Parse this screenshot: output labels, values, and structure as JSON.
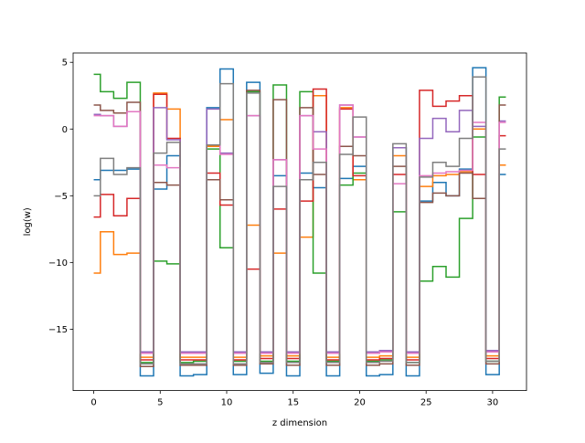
{
  "chart_data": {
    "type": "line",
    "drawstyle": "steps-mid",
    "title": "",
    "xlabel": "z dimension",
    "ylabel": "log(w)",
    "xlim": [
      -1.55,
      32.55
    ],
    "ylim": [
      -19.6,
      5.7
    ],
    "xticks": [
      0,
      5,
      10,
      15,
      20,
      25,
      30
    ],
    "yticks": [
      5,
      0,
      -5,
      -10,
      -15
    ],
    "legend": "none",
    "grid": false,
    "x": [
      0,
      1,
      2,
      3,
      4,
      5,
      6,
      7,
      8,
      9,
      10,
      11,
      12,
      13,
      14,
      15,
      16,
      17,
      18,
      19,
      20,
      21,
      22,
      23,
      24,
      25,
      26,
      27,
      28,
      29,
      30,
      31
    ],
    "series": [
      {
        "color": "#1f77b4",
        "values": [
          -3.8,
          -3.1,
          -3.1,
          -3.0,
          -18.5,
          -4.5,
          -2.0,
          -18.5,
          -18.4,
          1.6,
          4.5,
          -18.4,
          3.5,
          -18.3,
          -3.5,
          -18.5,
          -3.3,
          -4.4,
          -18.5,
          -3.7,
          -2.8,
          -18.5,
          -18.4,
          -1.4,
          -18.5,
          -5.4,
          -4.0,
          -5.0,
          -3.0,
          4.6,
          -18.4,
          -3.4
        ]
      },
      {
        "color": "#ff7f0e",
        "values": [
          -10.8,
          -7.7,
          -9.4,
          -9.3,
          -17.1,
          2.7,
          1.5,
          -17.1,
          -17.1,
          -1.3,
          0.7,
          -17.1,
          -7.2,
          -17.0,
          -9.3,
          -17.0,
          -8.1,
          2.5,
          -17.1,
          1.6,
          -3.8,
          -17.1,
          -17.0,
          -2.0,
          -17.1,
          -4.3,
          -3.5,
          -3.4,
          -3.2,
          0.0,
          -17.0,
          -2.7
        ]
      },
      {
        "color": "#2ca02c",
        "values": [
          4.1,
          2.8,
          2.3,
          3.5,
          -17.5,
          -9.9,
          -10.1,
          -17.5,
          -17.4,
          -1.5,
          -8.9,
          -17.4,
          2.8,
          -17.4,
          3.3,
          -17.4,
          2.8,
          -10.8,
          -17.4,
          -4.2,
          -3.3,
          -17.4,
          -17.3,
          -6.2,
          -17.5,
          -11.4,
          -10.3,
          -11.1,
          -6.7,
          -0.6,
          -17.4,
          2.4
        ]
      },
      {
        "color": "#d62728",
        "values": [
          -6.6,
          -4.9,
          -6.5,
          -5.2,
          -17.3,
          2.6,
          -0.7,
          -17.3,
          -17.3,
          -3.3,
          -5.7,
          -17.3,
          -10.5,
          -17.2,
          -6.0,
          -17.2,
          -5.4,
          3.0,
          -17.3,
          1.5,
          -3.5,
          -17.3,
          -17.2,
          -3.4,
          -17.3,
          2.9,
          1.7,
          2.1,
          2.5,
          -3.4,
          -17.2,
          -0.5
        ]
      },
      {
        "color": "#9467bd",
        "values": [
          1.1,
          1.0,
          0.2,
          1.3,
          -16.7,
          1.6,
          -0.8,
          -16.7,
          -16.7,
          1.5,
          -1.8,
          -16.7,
          1.0,
          -16.7,
          -2.3,
          -16.7,
          1.0,
          -0.2,
          -16.7,
          1.8,
          -0.6,
          -16.7,
          -16.6,
          -1.4,
          -16.7,
          -0.7,
          0.8,
          -0.2,
          1.4,
          0.2,
          -16.6,
          0.6
        ]
      },
      {
        "color": "#8c564b",
        "values": [
          1.8,
          1.4,
          1.2,
          2.0,
          -17.8,
          -4.0,
          -4.2,
          -17.7,
          -17.7,
          -3.8,
          -5.3,
          -17.7,
          2.9,
          -17.6,
          2.2,
          -17.7,
          1.6,
          -3.4,
          -17.7,
          -1.3,
          -2.0,
          -17.7,
          -17.6,
          -2.8,
          -17.7,
          -5.5,
          -4.8,
          -5.0,
          -3.3,
          -5.2,
          -17.6,
          1.8
        ]
      },
      {
        "color": "#e377c2",
        "values": [
          1.0,
          1.0,
          0.2,
          1.3,
          -16.8,
          -2.7,
          -2.9,
          -16.8,
          -16.8,
          -1.2,
          -1.9,
          -16.8,
          1.0,
          -16.8,
          -2.3,
          -16.8,
          1.0,
          -1.5,
          -16.8,
          1.8,
          -0.6,
          -16.8,
          -16.7,
          -4.1,
          -16.8,
          -3.5,
          -3.3,
          -3.2,
          -3.1,
          0.5,
          -16.7,
          0.5
        ]
      },
      {
        "color": "#7f7f7f",
        "values": [
          -5.0,
          -2.2,
          -3.4,
          -2.9,
          -17.6,
          -1.8,
          -1.0,
          -17.6,
          -17.6,
          -1.2,
          3.4,
          -17.6,
          2.7,
          -17.5,
          -4.3,
          -17.5,
          -3.8,
          -2.5,
          -17.5,
          -1.9,
          0.9,
          -17.5,
          -17.4,
          -1.1,
          -17.5,
          -3.6,
          -2.5,
          -2.8,
          -0.7,
          3.9,
          -17.4,
          -1.5
        ]
      }
    ]
  }
}
